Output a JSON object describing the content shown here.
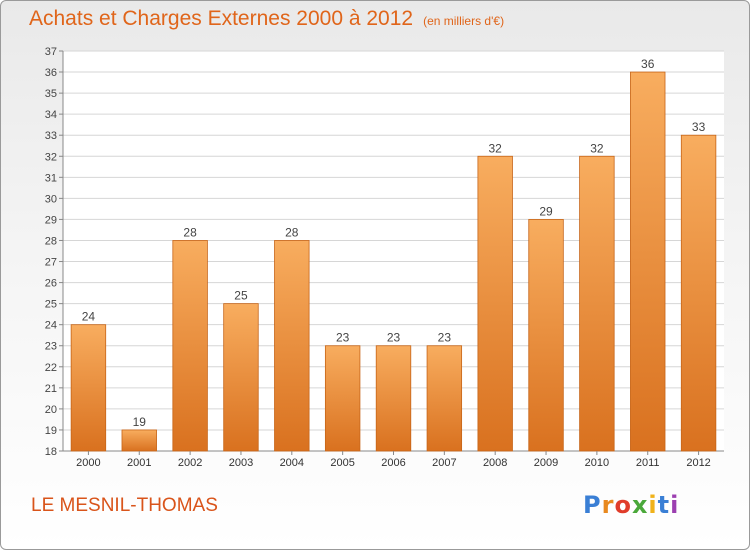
{
  "title": "Achats et Charges Externes 2000 à 2012",
  "subtitle": "(en milliers d'€)",
  "place": "LE MESNIL-THOMAS",
  "logo": {
    "text": "Proxiti",
    "letters": [
      "P",
      "r",
      "o",
      "x",
      "i",
      "t",
      "i"
    ],
    "colors": [
      "#3a7fd5",
      "#e8891f",
      "#e03c2a",
      "#4aa83a",
      "#f0b21a",
      "#3a7fd5",
      "#9c3fb0"
    ]
  },
  "colors": {
    "accent": "#e0651a",
    "bar_top": "#f8ad5f",
    "bar_bottom": "#d9711f",
    "bar_stroke": "#c76518"
  },
  "chart_data": {
    "type": "bar",
    "title": "Achats et Charges Externes 2000 à 2012",
    "subtitle": "(en milliers d'€)",
    "categories": [
      "2000",
      "2001",
      "2002",
      "2003",
      "2004",
      "2005",
      "2006",
      "2007",
      "2008",
      "2009",
      "2010",
      "2011",
      "2012"
    ],
    "values": [
      24,
      19,
      28,
      25,
      28,
      23,
      23,
      23,
      32,
      29,
      32,
      36,
      33
    ],
    "ylim": [
      18,
      37
    ],
    "yticks": [
      18,
      19,
      20,
      21,
      22,
      23,
      24,
      25,
      26,
      27,
      28,
      29,
      30,
      31,
      32,
      33,
      34,
      35,
      36,
      37
    ],
    "grid": true,
    "legend": "none",
    "data_labels": true
  }
}
